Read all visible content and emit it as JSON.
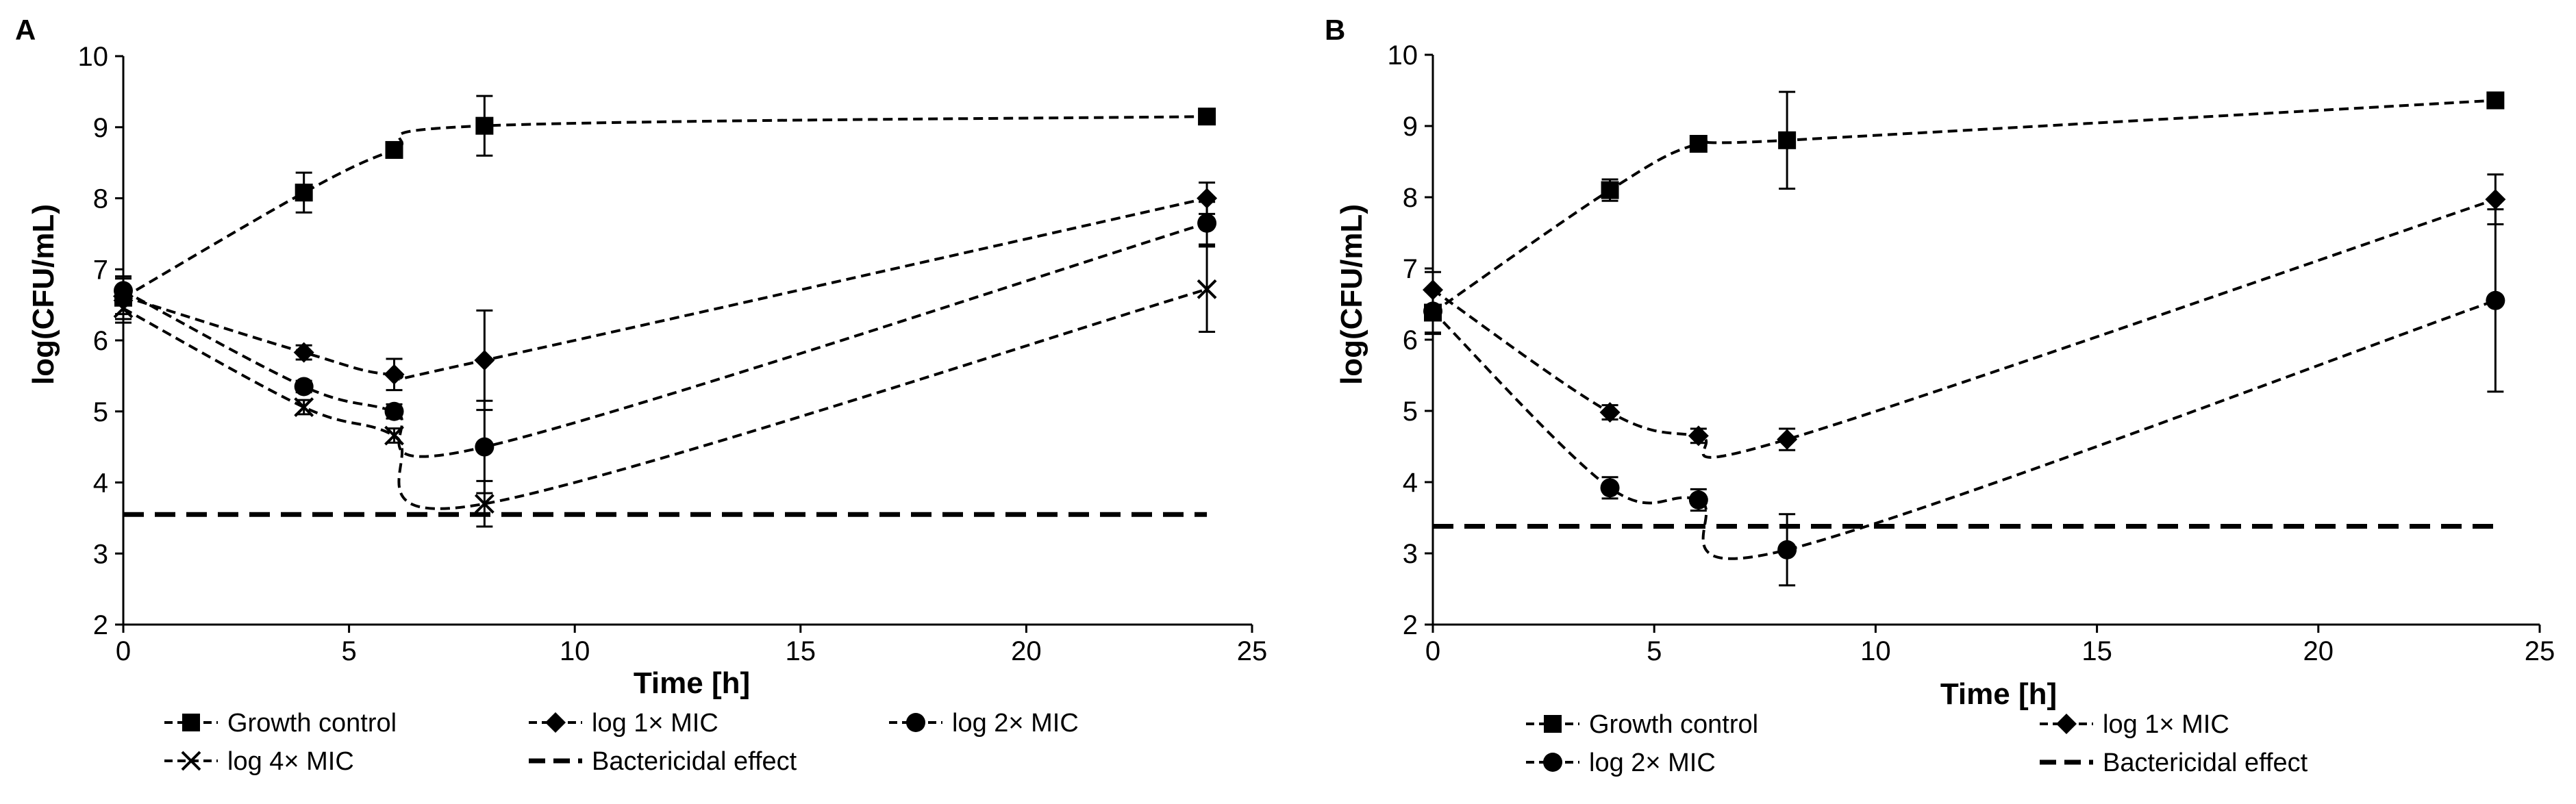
{
  "chart_data": [
    {
      "panel": "A",
      "type": "line",
      "xlabel": "Time  [h]",
      "ylabel": "log(CFU/mL)",
      "xlim": [
        0,
        25
      ],
      "ylim": [
        2,
        10
      ],
      "xticks": [
        0,
        5,
        10,
        15,
        20,
        25
      ],
      "yticks": [
        2,
        3,
        4,
        5,
        6,
        7,
        8,
        9,
        10
      ],
      "grid": false,
      "legend_position": "bottom",
      "series": [
        {
          "name": "Growth control",
          "marker": "square",
          "x": [
            0,
            4,
            6,
            8,
            24
          ],
          "y": [
            6.6,
            8.08,
            8.68,
            9.02,
            9.15
          ],
          "err": [
            0.3,
            0.28,
            0.1,
            0.42,
            0.08
          ]
        },
        {
          "name": "log 1× MIC",
          "marker": "diamond",
          "x": [
            0,
            4,
            6,
            8,
            24
          ],
          "y": [
            6.62,
            5.83,
            5.52,
            5.72,
            8.0
          ],
          "err": [
            0.25,
            0.1,
            0.22,
            0.7,
            0.22
          ]
        },
        {
          "name": "log 2× MIC",
          "marker": "circle",
          "x": [
            0,
            4,
            6,
            8,
            24
          ],
          "y": [
            6.7,
            5.35,
            5.0,
            4.5,
            7.65
          ],
          "err": [
            0.2,
            0.08,
            0.1,
            0.65,
            0.3
          ]
        },
        {
          "name": "log 4× MIC",
          "marker": "x",
          "x": [
            0,
            4,
            6,
            8,
            24
          ],
          "y": [
            6.45,
            5.06,
            4.66,
            3.7,
            6.72
          ],
          "err": [
            0.2,
            0.1,
            0.1,
            0.32,
            0.6
          ]
        },
        {
          "name": "Bactericidal effect",
          "marker": "none",
          "style": "dashed-thick",
          "x": [
            0,
            24
          ],
          "y": [
            3.55,
            3.55
          ]
        }
      ]
    },
    {
      "panel": "B",
      "type": "line",
      "xlabel": "Time  [h]",
      "ylabel": "log(CFU/mL)",
      "xlim": [
        0,
        25
      ],
      "ylim": [
        2,
        10
      ],
      "xticks": [
        0,
        5,
        10,
        15,
        20,
        25
      ],
      "yticks": [
        2,
        3,
        4,
        5,
        6,
        7,
        8,
        9,
        10
      ],
      "grid": false,
      "legend_position": "bottom",
      "series": [
        {
          "name": "Growth control",
          "marker": "square",
          "x": [
            0,
            4,
            6,
            8,
            24
          ],
          "y": [
            6.38,
            8.1,
            8.75,
            8.8,
            9.36
          ],
          "err": [
            0.3,
            0.15,
            0.1,
            0.68,
            0.08
          ]
        },
        {
          "name": "log 1× MIC",
          "marker": "diamond",
          "x": [
            0,
            4,
            6,
            8,
            24
          ],
          "y": [
            6.7,
            4.98,
            4.65,
            4.6,
            7.97
          ],
          "err": [
            0.25,
            0.1,
            0.1,
            0.15,
            0.35
          ]
        },
        {
          "name": "log 2× MIC",
          "marker": "circle",
          "x": [
            0,
            4,
            6,
            8,
            24
          ],
          "y": [
            6.4,
            3.92,
            3.75,
            3.05,
            6.55
          ],
          "err": [
            0.3,
            0.15,
            0.15,
            0.5,
            1.28
          ]
        },
        {
          "name": "Bactericidal effect",
          "marker": "none",
          "style": "dashed-thick",
          "x": [
            0,
            24
          ],
          "y": [
            3.38,
            3.38
          ]
        }
      ]
    }
  ]
}
